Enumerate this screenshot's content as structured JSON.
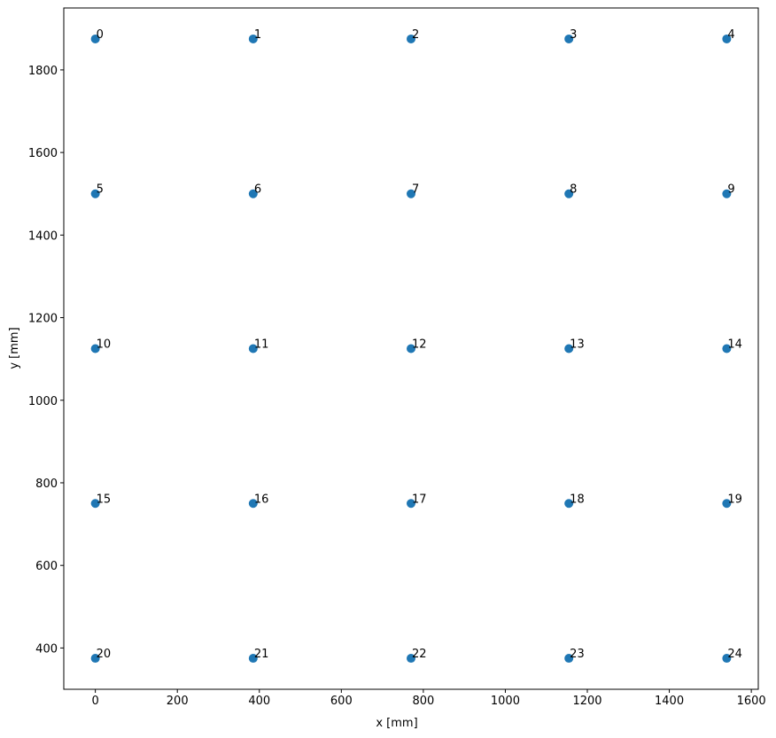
{
  "chart_data": {
    "type": "scatter",
    "x_label": "x [mm]",
    "y_label": "y [mm]",
    "color": "#1f77b4",
    "grid": false,
    "x": [
      0,
      385,
      770,
      1155,
      1540,
      0,
      385,
      770,
      1155,
      1540,
      0,
      385,
      770,
      1155,
      1540,
      0,
      385,
      770,
      1155,
      1540,
      0,
      385,
      770,
      1155,
      1540
    ],
    "values": [
      1875,
      1875,
      1875,
      1875,
      1875,
      1500,
      1500,
      1500,
      1500,
      1500,
      1125,
      1125,
      1125,
      1125,
      1125,
      750,
      750,
      750,
      750,
      750,
      375,
      375,
      375,
      375,
      375
    ],
    "labels": [
      "0",
      "1",
      "2",
      "3",
      "4",
      "5",
      "6",
      "7",
      "8",
      "9",
      "10",
      "11",
      "12",
      "13",
      "14",
      "15",
      "16",
      "17",
      "18",
      "19",
      "20",
      "21",
      "22",
      "23",
      "24"
    ],
    "xlim": [
      -77,
      1617
    ],
    "xticks": [
      0,
      200,
      400,
      600,
      800,
      1000,
      1200,
      1400,
      1600
    ],
    "ylim": [
      300,
      1950
    ],
    "yticks": [
      400,
      600,
      800,
      1000,
      1200,
      1400,
      1600,
      1800
    ]
  }
}
